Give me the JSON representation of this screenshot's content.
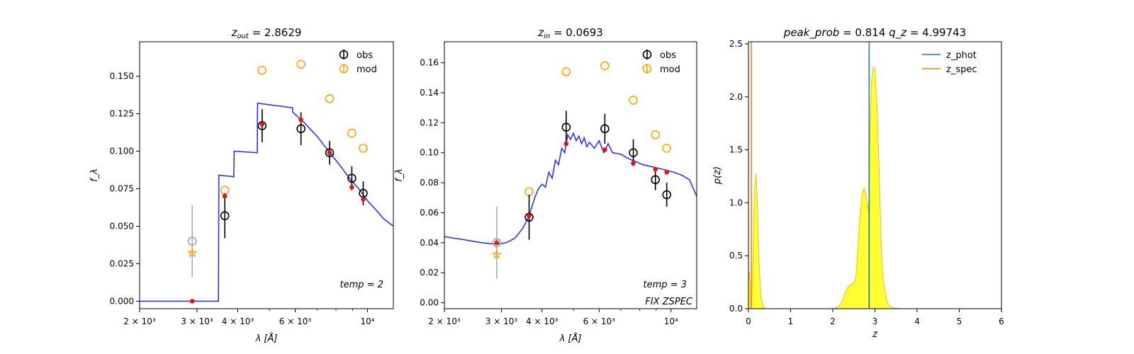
{
  "colors": {
    "obs": "#000000",
    "mod": "#ffa500",
    "model_point": "#ee1111",
    "sed_line": "#3333ee",
    "outlier": "#aaaaaa",
    "z_phot": "#1f77b4",
    "z_spec": "#ff7f0e",
    "pdf_fill": "#ffff33",
    "pdf_edge": "#e6c020"
  },
  "chart_data": [
    {
      "type": "scatter",
      "title": "z_out = 2.8629",
      "title_sym": "z",
      "title_sub": "out",
      "title_value": "= 2.8629",
      "xlabel": "λ [Å]",
      "ylabel": "f_λ",
      "x_scale": "log",
      "xlim": [
        2000,
        12000
      ],
      "ylim": [
        -0.005,
        0.173
      ],
      "xticks": [
        {
          "value": 2000,
          "label": "2 × 10³"
        },
        {
          "value": 3000,
          "label": "3 × 10³"
        },
        {
          "value": 4000,
          "label": "4 × 10³"
        },
        {
          "value": 6000,
          "label": "6 × 10³"
        },
        {
          "value": 10000,
          "label": "10⁴"
        }
      ],
      "yticks": [
        {
          "value": 0.0,
          "label": "0.000"
        },
        {
          "value": 0.025,
          "label": "0.025"
        },
        {
          "value": 0.05,
          "label": "0.050"
        },
        {
          "value": 0.075,
          "label": "0.075"
        },
        {
          "value": 0.1,
          "label": "0.100"
        },
        {
          "value": 0.125,
          "label": "0.125"
        },
        {
          "value": 0.15,
          "label": "0.150"
        }
      ],
      "legend": {
        "placement": "upper-right",
        "entries": [
          "obs",
          "mod"
        ]
      },
      "annotation": "temp = 2",
      "annotation2": "",
      "obs": {
        "x": [
          3650,
          4750,
          6250,
          7650,
          8950,
          9700
        ],
        "y": [
          0.057,
          0.117,
          0.115,
          0.099,
          0.082,
          0.072
        ],
        "err": [
          0.015,
          0.011,
          0.011,
          0.008,
          0.008,
          0.008
        ]
      },
      "outlier": {
        "x": 2900,
        "y": 0.04,
        "err": 0.024,
        "model": 0.032
      },
      "mod": {
        "x": [
          3650,
          4750,
          6250,
          7650,
          8950,
          9700
        ],
        "y": [
          0.074,
          0.154,
          0.158,
          0.135,
          0.112,
          0.102
        ]
      },
      "model_points": {
        "x": [
          2900,
          3650,
          4750,
          6250,
          7650,
          8950,
          9700
        ],
        "y": [
          0.0,
          0.07,
          0.118,
          0.121,
          0.099,
          0.076,
          0.068
        ]
      },
      "sed": {
        "x": [
          2000,
          3490,
          3500,
          3890,
          3900,
          4590,
          4600,
          5890,
          5900,
          6400,
          7000,
          7600,
          8200,
          8800,
          9400,
          10000,
          10600,
          11200,
          12000
        ],
        "y": [
          0.0,
          0.0,
          0.084,
          0.083,
          0.1,
          0.099,
          0.132,
          0.129,
          0.126,
          0.119,
          0.11,
          0.1,
          0.091,
          0.082,
          0.075,
          0.067,
          0.061,
          0.055,
          0.05
        ]
      }
    },
    {
      "type": "scatter",
      "title": "z_in = 0.0693",
      "title_sym": "z",
      "title_sub": "in",
      "title_value": "= 0.0693",
      "xlabel": "λ [Å]",
      "ylabel": "f_λ",
      "x_scale": "log",
      "xlim": [
        2000,
        12000
      ],
      "ylim": [
        -0.004,
        0.174
      ],
      "xticks": [
        {
          "value": 2000,
          "label": "2 × 10³"
        },
        {
          "value": 3000,
          "label": "3 × 10³"
        },
        {
          "value": 4000,
          "label": "4 × 10³"
        },
        {
          "value": 6000,
          "label": "6 × 10³"
        },
        {
          "value": 10000,
          "label": "10⁴"
        }
      ],
      "yticks": [
        {
          "value": 0.0,
          "label": "0.00"
        },
        {
          "value": 0.02,
          "label": "0.02"
        },
        {
          "value": 0.04,
          "label": "0.04"
        },
        {
          "value": 0.06,
          "label": "0.06"
        },
        {
          "value": 0.08,
          "label": "0.08"
        },
        {
          "value": 0.1,
          "label": "0.10"
        },
        {
          "value": 0.12,
          "label": "0.12"
        },
        {
          "value": 0.14,
          "label": "0.14"
        },
        {
          "value": 0.16,
          "label": "0.16"
        }
      ],
      "legend": {
        "placement": "upper-right",
        "entries": [
          "obs",
          "mod"
        ]
      },
      "annotation": "temp = 3",
      "annotation2": "FIX ZSPEC",
      "obs": {
        "x": [
          3650,
          4750,
          6250,
          7650,
          8950,
          9700
        ],
        "y": [
          0.057,
          0.117,
          0.116,
          0.1,
          0.082,
          0.072
        ],
        "err": [
          0.015,
          0.011,
          0.01,
          0.009,
          0.007,
          0.008
        ]
      },
      "outlier": {
        "x": 2900,
        "y": 0.04,
        "err": 0.024,
        "model": 0.032
      },
      "mod": {
        "x": [
          3650,
          4750,
          6250,
          7650,
          8950,
          9700
        ],
        "y": [
          0.074,
          0.154,
          0.158,
          0.135,
          0.112,
          0.103
        ]
      },
      "model_points": {
        "x": [
          2900,
          3650,
          4750,
          6250,
          7650,
          8950,
          9700
        ],
        "y": [
          0.04,
          0.058,
          0.106,
          0.102,
          0.093,
          0.089,
          0.087
        ]
      },
      "sed": {
        "x": [
          2000,
          2300,
          2600,
          2900,
          3100,
          3300,
          3500,
          3650,
          3800,
          3900,
          4000,
          4100,
          4200,
          4300,
          4400,
          4500,
          4600,
          4700,
          4800,
          4900,
          5000,
          5100,
          5200,
          5300,
          5400,
          5500,
          5600,
          5800,
          6000,
          6200,
          6400,
          6600,
          7000,
          7400,
          7800,
          8200,
          8600,
          9000,
          9400,
          9800,
          10200,
          10800,
          11400,
          12000
        ],
        "y": [
          0.044,
          0.042,
          0.04,
          0.039,
          0.04,
          0.043,
          0.05,
          0.058,
          0.07,
          0.076,
          0.079,
          0.077,
          0.087,
          0.083,
          0.095,
          0.092,
          0.103,
          0.1,
          0.112,
          0.109,
          0.113,
          0.108,
          0.111,
          0.106,
          0.11,
          0.104,
          0.107,
          0.103,
          0.108,
          0.1,
          0.106,
          0.1,
          0.099,
          0.096,
          0.094,
          0.092,
          0.091,
          0.09,
          0.089,
          0.088,
          0.087,
          0.085,
          0.082,
          0.071
        ]
      }
    },
    {
      "type": "area",
      "title": "peak_prob = 0.814   q_z = 4.99743",
      "title_part1": "peak_prob",
      "title_value1": "= 0.814",
      "title_part2": "q_z",
      "title_value2": "= 4.99743",
      "xlabel": "z",
      "ylabel": "p(z)",
      "xlim": [
        0,
        6
      ],
      "ylim": [
        0,
        2.52
      ],
      "xticks": [
        {
          "value": 0,
          "label": "0"
        },
        {
          "value": 1,
          "label": "1"
        },
        {
          "value": 2,
          "label": "2"
        },
        {
          "value": 3,
          "label": "3"
        },
        {
          "value": 4,
          "label": "4"
        },
        {
          "value": 5,
          "label": "5"
        },
        {
          "value": 6,
          "label": "6"
        }
      ],
      "yticks": [
        {
          "value": 0.0,
          "label": "0.0"
        },
        {
          "value": 0.5,
          "label": "0.5"
        },
        {
          "value": 1.0,
          "label": "1.0"
        },
        {
          "value": 1.5,
          "label": "1.5"
        },
        {
          "value": 2.0,
          "label": "2.0"
        },
        {
          "value": 2.5,
          "label": "2.5"
        }
      ],
      "legend": {
        "placement": "upper-right",
        "entries": [
          "z_phot",
          "z_spec"
        ]
      },
      "z_phot": 2.8629,
      "z_spec": 0.0693,
      "pdf": {
        "x": [
          0,
          0.03,
          0.05,
          0.07,
          0.1,
          0.14,
          0.18,
          0.21,
          0.25,
          0.3,
          0.35,
          0.4,
          0.6,
          1.0,
          1.5,
          2.0,
          2.1,
          2.2,
          2.3,
          2.35,
          2.4,
          2.45,
          2.5,
          2.55,
          2.6,
          2.65,
          2.7,
          2.75,
          2.8,
          2.85,
          2.88,
          2.92,
          2.96,
          3.0,
          3.05,
          3.1,
          3.15,
          3.2,
          3.3,
          3.4,
          3.6,
          4.0,
          5.0
        ],
        "y": [
          0.3,
          0.35,
          0.02,
          0.05,
          0.3,
          1.1,
          1.28,
          1.0,
          0.45,
          0.1,
          0.03,
          0.0,
          0.0,
          0.0,
          0.0,
          0.0,
          0.01,
          0.05,
          0.15,
          0.2,
          0.22,
          0.23,
          0.24,
          0.3,
          0.6,
          0.9,
          1.1,
          1.14,
          1.05,
          0.9,
          1.6,
          2.15,
          2.28,
          2.27,
          1.9,
          1.3,
          0.6,
          0.25,
          0.05,
          0.01,
          0.0,
          0.0,
          0.0
        ]
      }
    }
  ]
}
